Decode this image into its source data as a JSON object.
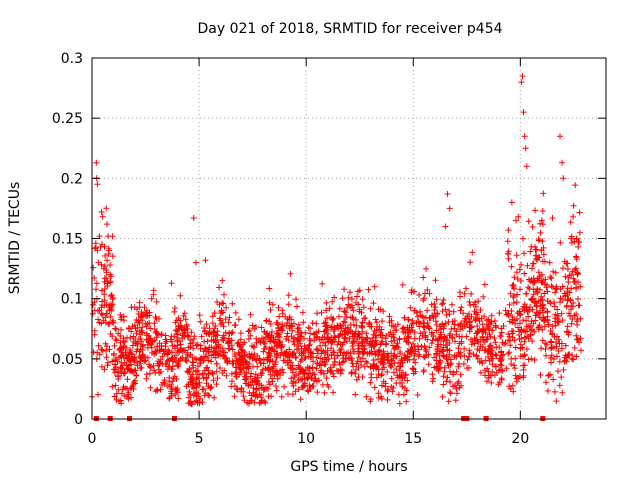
{
  "chart_data": {
    "type": "scatter",
    "title": "Day 021 of 2018, SRMTID for receiver p454",
    "xlabel": "GPS time / hours",
    "ylabel": "SRMTID / TECUs",
    "xlim": [
      0,
      24
    ],
    "ylim": [
      0,
      0.3
    ],
    "xticks": [
      0,
      5,
      10,
      15,
      20
    ],
    "xtick_labels": [
      "0",
      "5",
      "10",
      "15",
      "20"
    ],
    "yticks": [
      0,
      0.05,
      0.1,
      0.15,
      0.2,
      0.25,
      0.3
    ],
    "ytick_labels": [
      "0",
      "0.05",
      "0.1",
      "0.15",
      "0.2",
      "0.25",
      "0.3"
    ],
    "grid": true,
    "marker": "+",
    "color": "#ff0000",
    "series": [
      {
        "name": "SRMTID",
        "summary": "Dense cloud of several thousand samples between 0 and 22.8 h, mostly 0.02-0.10 TECU; bursts near 0.1-0.9 h (to ~0.21), ~4.8 h (~0.17), ~16.5-17 h (~0.19), ~19.9-20.2 h (to ~0.28) and ~21.9 h (~0.24).",
        "points": [
          [
            0.05,
            0.095
          ],
          [
            0.12,
            0.07
          ],
          [
            0.2,
            0.213
          ],
          [
            0.22,
            0.2
          ],
          [
            0.25,
            0.195
          ],
          [
            0.3,
            0.13
          ],
          [
            0.35,
            0.152
          ],
          [
            0.4,
            0.143
          ],
          [
            0.45,
            0.172
          ],
          [
            0.5,
            0.168
          ],
          [
            0.55,
            0.125
          ],
          [
            0.6,
            0.108
          ],
          [
            0.7,
            0.162
          ],
          [
            0.75,
            0.152
          ],
          [
            0.8,
            0.14
          ],
          [
            0.85,
            0.12
          ],
          [
            0.9,
            0.09
          ],
          [
            1.0,
            0.08
          ],
          [
            4.75,
            0.167
          ],
          [
            4.85,
            0.13
          ],
          [
            5.3,
            0.132
          ],
          [
            16.6,
            0.187
          ],
          [
            16.7,
            0.175
          ],
          [
            16.5,
            0.16
          ],
          [
            19.6,
            0.18
          ],
          [
            19.8,
            0.165
          ],
          [
            20.05,
            0.28
          ],
          [
            20.1,
            0.285
          ],
          [
            20.15,
            0.255
          ],
          [
            20.2,
            0.235
          ],
          [
            20.25,
            0.225
          ],
          [
            20.3,
            0.21
          ],
          [
            21.0,
            0.165
          ],
          [
            21.85,
            0.235
          ],
          [
            21.95,
            0.213
          ],
          [
            22.0,
            0.2
          ],
          [
            22.7,
            0.143
          ],
          [
            22.8,
            0.11
          ]
        ]
      }
    ],
    "data_gaps_x": [
      0.2,
      0.85,
      1.75,
      3.85,
      17.35,
      17.5,
      18.4,
      21.05
    ]
  }
}
